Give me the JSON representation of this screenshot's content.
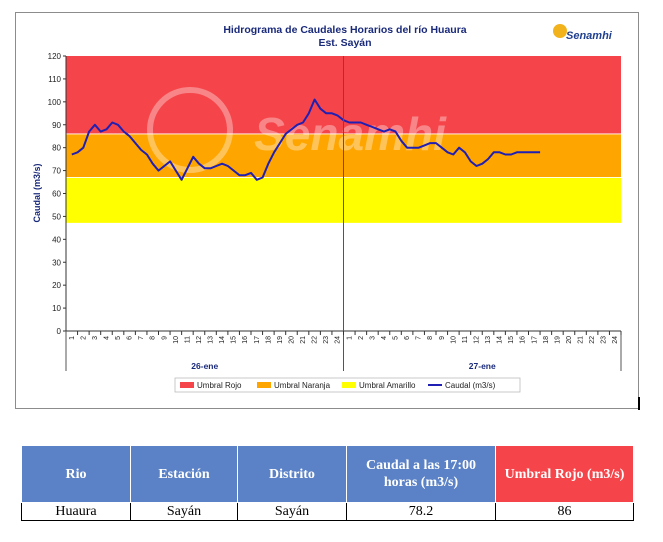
{
  "chart_data": {
    "type": "line",
    "title": "Hidrograma  de Caudales Horarios  del río Huaura",
    "subtitle": "Est. Sayán",
    "ylabel": "Caudal (m3/s)",
    "xlabel": "",
    "ylim": [
      0,
      120
    ],
    "yticks": [
      0,
      10,
      20,
      30,
      40,
      50,
      60,
      70,
      80,
      90,
      100,
      110,
      120
    ],
    "xtick_labels": [
      "1",
      "2",
      "3",
      "4",
      "5",
      "6",
      "7",
      "8",
      "9",
      "10",
      "11",
      "12",
      "13",
      "14",
      "15",
      "16",
      "17",
      "18",
      "19",
      "20",
      "21",
      "22",
      "23",
      "24",
      "1",
      "2",
      "3",
      "4",
      "5",
      "6",
      "7",
      "8",
      "9",
      "10",
      "11",
      "12",
      "13",
      "14",
      "15",
      "16",
      "17",
      "18",
      "19",
      "20",
      "21",
      "22",
      "23",
      "24"
    ],
    "day_labels": [
      "26-ene",
      "27-ene"
    ],
    "thresholds": {
      "rojo": 86,
      "naranja": 67,
      "amarillo": 47
    },
    "threshold_colors": {
      "rojo": "#f5454a",
      "naranja": "#ffa500",
      "amarillo": "#ffff00",
      "caudal": "#1f1fb4"
    },
    "legend": [
      "Umbral Rojo",
      "Umbral Naranja",
      "Umbral Amarillo",
      "Caudal (m3/s)"
    ],
    "legend_position": "bottom",
    "series": [
      {
        "name": "Caudal (m3/s)",
        "x": [
          0.5,
          1,
          1.5,
          2,
          2.5,
          3,
          3.5,
          4,
          4.5,
          5,
          5.5,
          6,
          6.5,
          7,
          7.5,
          8,
          8.5,
          9,
          9.5,
          10,
          10.5,
          11,
          11.5,
          12,
          12.5,
          13,
          13.5,
          14,
          14.5,
          15,
          15.5,
          16,
          16.5,
          17,
          17.5,
          18,
          18.5,
          19,
          19.5,
          20,
          20.5,
          21,
          21.5,
          22,
          22.5,
          23,
          23.5,
          24,
          24.5,
          25,
          25.5,
          26,
          26.5,
          27,
          27.5,
          28,
          28.5,
          29,
          29.5,
          30,
          30.5,
          31,
          31.5,
          32,
          32.5,
          33,
          33.5,
          34,
          34.5,
          35,
          35.5,
          36,
          36.5,
          37,
          37.5,
          38,
          38.5,
          39,
          39.5,
          40,
          40.5,
          41
        ],
        "values": [
          77,
          78,
          80,
          87,
          90,
          87,
          88,
          91,
          90,
          87,
          85,
          82,
          79,
          77,
          73,
          70,
          72,
          74,
          70,
          66,
          71,
          76,
          73,
          71,
          71,
          72,
          73,
          72,
          70,
          68,
          68,
          69,
          66,
          67,
          73,
          78,
          82,
          86,
          88,
          90,
          91,
          95,
          101,
          97,
          95,
          95,
          94,
          92,
          91,
          91,
          91,
          90,
          89,
          88,
          87,
          88,
          87,
          83,
          80,
          80,
          80,
          81,
          82,
          82,
          80,
          78,
          77,
          80,
          78,
          74,
          72,
          73,
          75,
          78,
          78,
          77,
          77,
          78,
          78,
          78,
          78,
          78
        ]
      }
    ]
  },
  "logo": {
    "text": "Senamhi",
    "watermark": "Senamhi"
  },
  "table": {
    "headers": [
      "Rio",
      "Estación",
      "Distrito",
      "Caudal a las 17:00 horas (m3/s)",
      "Umbral Rojo (m3/s)"
    ],
    "rows": [
      [
        "Huaura",
        "Sayán",
        "Sayán",
        "78.2",
        "86"
      ]
    ]
  }
}
